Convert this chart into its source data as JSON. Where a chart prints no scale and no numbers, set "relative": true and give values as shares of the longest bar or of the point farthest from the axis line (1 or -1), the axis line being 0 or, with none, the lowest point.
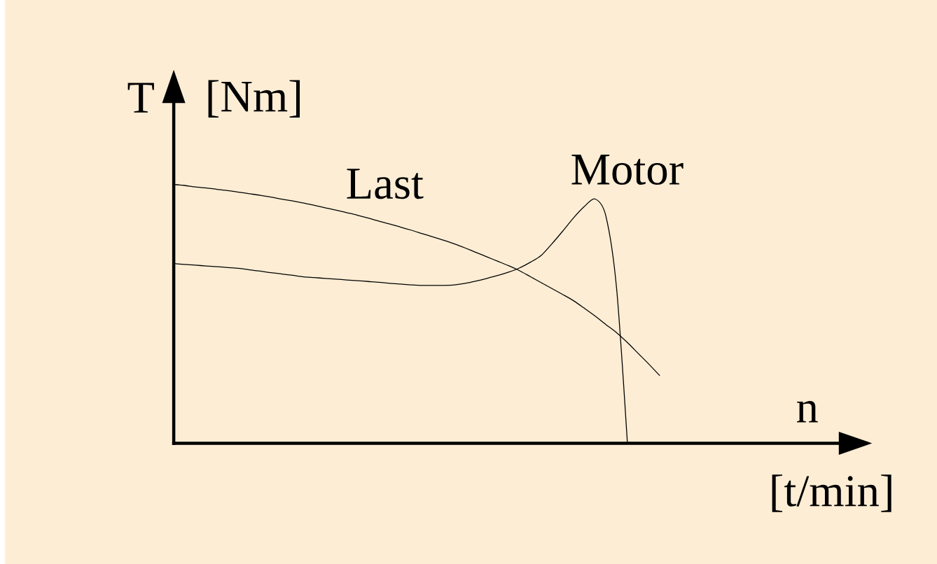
{
  "chart_data": {
    "type": "line",
    "relative": true,
    "xlabel": "n",
    "ylabel": "T",
    "annotations": [
      "[Nm]",
      "[t/min]"
    ],
    "categories": [
      null,
      null,
      null,
      null,
      null,
      null,
      null,
      null,
      null,
      null,
      null,
      null,
      null,
      null,
      null,
      null,
      null,
      null,
      null,
      null,
      null,
      null,
      null,
      null,
      null,
      null,
      null,
      null,
      null,
      null,
      null,
      null,
      null,
      null,
      null,
      null,
      null,
      null,
      null,
      null,
      null,
      null,
      null,
      null,
      null,
      null
    ],
    "series": [
      {
        "name": "Last",
        "color": "#000000",
        "values": [
          1,
          0.996,
          0.99,
          0.986,
          0.981,
          0.976,
          0.97,
          0.964,
          0.958,
          0.951,
          0.943,
          0.936,
          0.928,
          0.919,
          0.91,
          0.901,
          0.891,
          0.881,
          0.87,
          0.858,
          0.847,
          0.835,
          0.823,
          0.81,
          0.797,
          0.784,
          0.77,
          0.754,
          0.737,
          0.72,
          0.703,
          0.686,
          0.667,
          0.644,
          0.621,
          0.598,
          0.575,
          0.551,
          0.522,
          0.492,
          0.459,
          0.427,
          0.389,
          0.347,
          0.305,
          0.261
        ]
      },
      {
        "name": "Motor",
        "color": "#000000",
        "values": [
          0.694,
          0.691,
          0.688,
          0.685,
          0.682,
          0.679,
          0.676,
          0.67,
          0.665,
          0.659,
          0.654,
          0.649,
          0.643,
          0.64,
          0.637,
          0.634,
          0.631,
          0.628,
          0.625,
          0.622,
          0.618,
          0.615,
          0.612,
          0.61,
          0.61,
          0.61,
          0.612,
          0.618,
          0.627,
          0.637,
          0.648,
          0.661,
          0.677,
          0.699,
          0.725,
          0.77,
          0.819,
          0.87,
          0.914,
          0.944,
          0.879,
          0.598,
          0,
          null,
          null,
          null
        ]
      }
    ]
  }
}
